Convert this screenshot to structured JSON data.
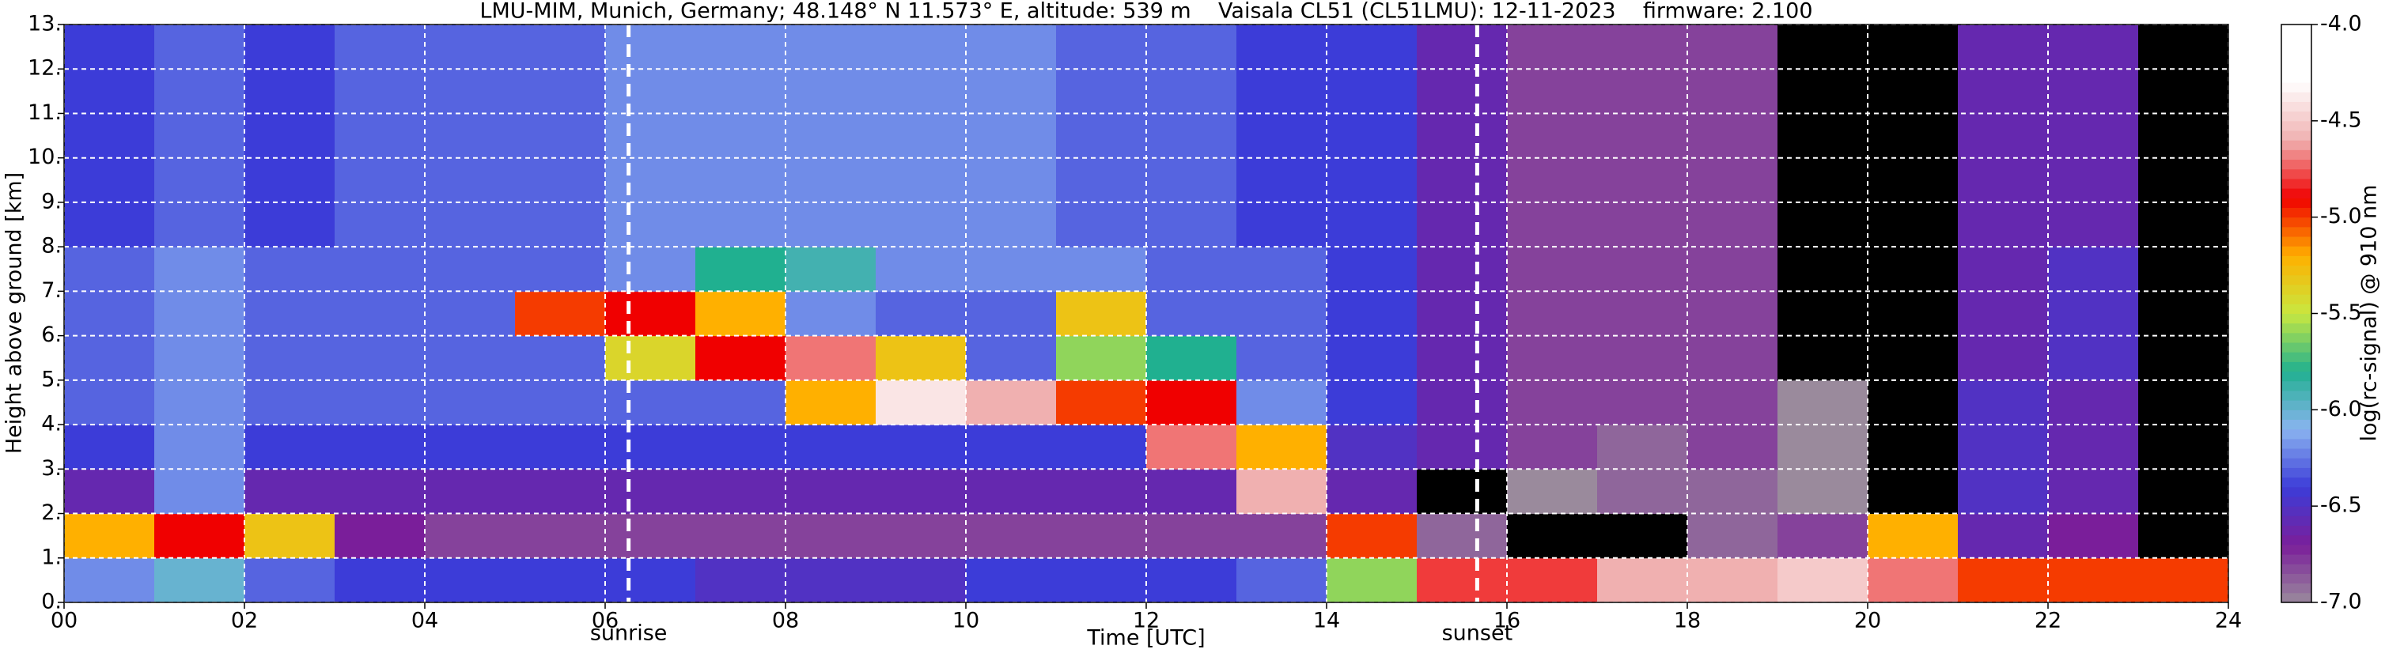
{
  "chart_data": {
    "type": "heatmap",
    "title": "LMU-MIM, Munich, Germany; 48.148° N 11.573° E, altitude: 539 m    Vaisala CL51 (CL51LMU): 12-11-2023    firmware: 2.100",
    "xlabel": "Time [UTC]",
    "ylabel": "Height above ground [km]",
    "x_edges": [
      0,
      1,
      2,
      3,
      4,
      5,
      6,
      7,
      8,
      9,
      10,
      11,
      12,
      13,
      14,
      15,
      16,
      17,
      18,
      19,
      20,
      21,
      22,
      23,
      24
    ],
    "y_edges": [
      0,
      1,
      2,
      3,
      4,
      5,
      6,
      7,
      8,
      9,
      10,
      11,
      12,
      13
    ],
    "z": [
      [
        -6.2,
        -6.0,
        -6.3,
        -6.4,
        -6.4,
        -6.4,
        -6.4,
        -6.5,
        -6.5,
        -6.5,
        -6.4,
        -6.4,
        -6.4,
        -6.3,
        -5.6,
        -4.8,
        -4.8,
        -4.6,
        -4.6,
        -4.5,
        -4.7,
        -5.0,
        -5.0,
        -5.0
      ],
      [
        -5.2,
        -4.9,
        -5.3,
        -6.7,
        -6.8,
        -6.8,
        -6.8,
        -6.8,
        -6.8,
        -6.8,
        -6.8,
        -6.8,
        -6.8,
        -6.8,
        -5.0,
        -6.9,
        -7.2,
        -7.2,
        -6.9,
        -6.8,
        -5.2,
        -6.6,
        -6.7,
        -7.2
      ],
      [
        -6.6,
        -6.2,
        -6.6,
        -6.6,
        -6.6,
        -6.6,
        -6.6,
        -6.6,
        -6.6,
        -6.6,
        -6.6,
        -6.6,
        -6.6,
        -4.6,
        -6.6,
        -7.2,
        -7.0,
        -6.9,
        -6.9,
        -7.0,
        -7.2,
        -6.5,
        -6.6,
        -7.2
      ],
      [
        -6.4,
        -6.2,
        -6.4,
        -6.4,
        -6.4,
        -6.4,
        -6.4,
        -6.4,
        -6.4,
        -6.4,
        -6.4,
        -6.4,
        -4.7,
        -5.2,
        -6.5,
        -6.6,
        -6.8,
        -6.9,
        -6.8,
        -7.0,
        -7.2,
        -6.5,
        -6.6,
        -7.2
      ],
      [
        -6.3,
        -6.2,
        -6.3,
        -6.3,
        -6.3,
        -6.3,
        -6.3,
        -6.3,
        -5.2,
        -4.4,
        -4.6,
        -5.0,
        -4.9,
        -6.2,
        -6.4,
        -6.6,
        -6.8,
        -6.8,
        -6.8,
        -7.0,
        -7.2,
        -6.5,
        -6.6,
        -7.2
      ],
      [
        -6.3,
        -6.2,
        -6.3,
        -6.3,
        -6.3,
        -6.3,
        -5.4,
        -4.9,
        -4.7,
        -5.3,
        -6.3,
        -5.6,
        -5.8,
        -6.3,
        -6.4,
        -6.6,
        -6.8,
        -6.8,
        -6.8,
        -7.1,
        -7.2,
        -6.6,
        -6.5,
        -7.2
      ],
      [
        -6.3,
        -6.2,
        -6.3,
        -6.3,
        -6.3,
        -5.0,
        -4.9,
        -5.2,
        -6.2,
        -6.3,
        -6.3,
        -5.3,
        -6.3,
        -6.3,
        -6.4,
        -6.6,
        -6.8,
        -6.8,
        -6.8,
        -7.1,
        -7.2,
        -6.6,
        -6.5,
        -7.2
      ],
      [
        -6.3,
        -6.2,
        -6.3,
        -6.3,
        -6.3,
        -6.3,
        -6.2,
        -5.8,
        -5.9,
        -6.2,
        -6.2,
        -6.2,
        -6.3,
        -6.3,
        -6.4,
        -6.6,
        -6.8,
        -6.8,
        -6.8,
        -7.1,
        -7.2,
        -6.6,
        -6.5,
        -7.2
      ],
      [
        -6.4,
        -6.3,
        -6.4,
        -6.3,
        -6.3,
        -6.3,
        -6.2,
        -6.2,
        -6.2,
        -6.2,
        -6.2,
        -6.3,
        -6.3,
        -6.4,
        -6.4,
        -6.6,
        -6.8,
        -6.8,
        -6.8,
        -7.1,
        -7.2,
        -6.6,
        -6.6,
        -7.2
      ],
      [
        -6.4,
        -6.3,
        -6.4,
        -6.3,
        -6.3,
        -6.3,
        -6.2,
        -6.2,
        -6.2,
        -6.2,
        -6.2,
        -6.3,
        -6.3,
        -6.4,
        -6.4,
        -6.6,
        -6.8,
        -6.8,
        -6.8,
        -7.1,
        -7.2,
        -6.6,
        -6.6,
        -7.2
      ],
      [
        -6.4,
        -6.3,
        -6.4,
        -6.3,
        -6.3,
        -6.3,
        -6.2,
        -6.2,
        -6.2,
        -6.2,
        -6.2,
        -6.3,
        -6.3,
        -6.4,
        -6.4,
        -6.6,
        -6.8,
        -6.8,
        -6.8,
        -7.1,
        -7.2,
        -6.6,
        -6.6,
        -7.2
      ],
      [
        -6.4,
        -6.3,
        -6.4,
        -6.3,
        -6.3,
        -6.3,
        -6.2,
        -6.2,
        -6.2,
        -6.2,
        -6.2,
        -6.3,
        -6.3,
        -6.4,
        -6.4,
        -6.6,
        -6.8,
        -6.8,
        -6.8,
        -7.1,
        -7.2,
        -6.6,
        -6.6,
        -7.2
      ],
      [
        -6.4,
        -6.3,
        -6.4,
        -6.3,
        -6.3,
        -6.3,
        -6.2,
        -6.2,
        -6.2,
        -6.2,
        -6.2,
        -6.3,
        -6.3,
        -6.4,
        -6.4,
        -6.6,
        -6.8,
        -6.8,
        -6.8,
        -7.1,
        -7.2,
        -6.6,
        -6.6,
        -7.2
      ]
    ],
    "xlim": [
      0,
      24
    ],
    "xticks": [
      {
        "value": 0,
        "label": "00"
      },
      {
        "value": 2,
        "label": "02"
      },
      {
        "value": 4,
        "label": "04"
      },
      {
        "value": 6,
        "label": "06"
      },
      {
        "value": 8,
        "label": "08"
      },
      {
        "value": 10,
        "label": "10"
      },
      {
        "value": 12,
        "label": "12"
      },
      {
        "value": 14,
        "label": "14"
      },
      {
        "value": 16,
        "label": "16"
      },
      {
        "value": 18,
        "label": "18"
      },
      {
        "value": 20,
        "label": "20"
      },
      {
        "value": 22,
        "label": "22"
      },
      {
        "value": 24,
        "label": "24"
      }
    ],
    "ylim": [
      0,
      13
    ],
    "yticks": [
      {
        "value": 0,
        "label": "0."
      },
      {
        "value": 1,
        "label": "1."
      },
      {
        "value": 2,
        "label": "2."
      },
      {
        "value": 3,
        "label": "3."
      },
      {
        "value": 4,
        "label": "4."
      },
      {
        "value": 5,
        "label": "5."
      },
      {
        "value": 6,
        "label": "6."
      },
      {
        "value": 7,
        "label": "7."
      },
      {
        "value": 8,
        "label": "8."
      },
      {
        "value": 9,
        "label": "9."
      },
      {
        "value": 10,
        "label": "10."
      },
      {
        "value": 11,
        "label": "11."
      },
      {
        "value": 12,
        "label": "12."
      },
      {
        "value": 13,
        "label": "13."
      }
    ],
    "grid": true,
    "annotations": [
      {
        "text": "sunrise",
        "x": 6.26
      },
      {
        "text": "sunset",
        "x": 15.67
      }
    ],
    "colorbar": {
      "label": "log(rc-signal) @ 910 nm",
      "zlim": [
        -7,
        -4
      ],
      "ticks": [
        {
          "value": -7,
          "label": "-7.0"
        },
        -6.5,
        {
          "value": -6,
          "label": "-6.0"
        },
        -5.5,
        {
          "value": -5,
          "label": "-5.0"
        },
        -4.5,
        {
          "value": -4,
          "label": "-4.0"
        }
      ],
      "colors": [
        "#9a8a9c",
        "#7a1e9a",
        "#3c3cd8",
        "#8ab4f0",
        "#20b090",
        "#c8e840",
        "#ffb000",
        "#f00000",
        "#f0b0b0",
        "#ffffff",
        "#ffffff"
      ],
      "under_color": "#000000"
    }
  }
}
